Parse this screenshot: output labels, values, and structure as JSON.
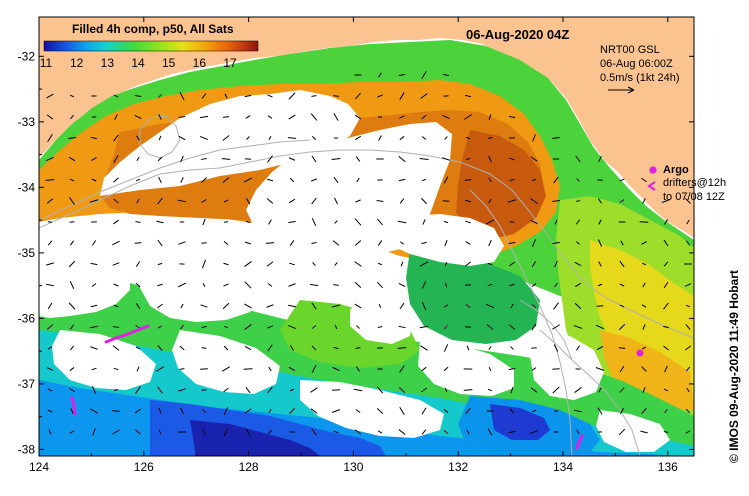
{
  "title": "Filled 4h comp, p50, All Sats",
  "date": "06-Aug-2020 04Z",
  "colorbar": {
    "ticks": [
      "11",
      "12",
      "13",
      "14",
      "15",
      "16",
      "17"
    ],
    "colors": [
      "#1a0ea6",
      "#1455e6",
      "#0aa8f0",
      "#14d6c2",
      "#3cdc3c",
      "#9ee21a",
      "#e8e014",
      "#f4a60a",
      "#e86a08",
      "#c23a10",
      "#8c1410"
    ]
  },
  "current_legend": {
    "line1": "NRT00 GSL",
    "line2": "06-Aug 06:00Z",
    "line3": "0.5m/s (1kt 24h)"
  },
  "argo_legend": {
    "argo_label": "Argo",
    "drifters_line1": "drifters@12h",
    "drifters_line2": "to 07/08 12Z"
  },
  "credit": "© IMOS 09-Aug-2020 11:49 Hobart",
  "x_ticks": [
    "124",
    "126",
    "128",
    "130",
    "132",
    "134",
    "136"
  ],
  "y_ticks": [
    "-32",
    "-33",
    "-34",
    "-35",
    "-36",
    "-37",
    "-38"
  ],
  "land_color": "#fbc38f",
  "marker_color": "#e020e0"
}
